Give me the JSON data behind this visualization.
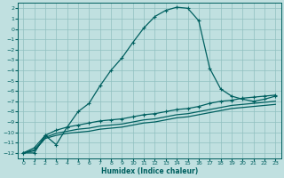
{
  "xlabel": "Humidex (Indice chaleur)",
  "ylabel": "",
  "bg_color": "#c0e0e0",
  "grid_color": "#90c0c0",
  "line_color": "#006060",
  "xlim": [
    -0.5,
    23.5
  ],
  "ylim": [
    -12.5,
    2.5
  ],
  "yticks": [
    2,
    1,
    0,
    -1,
    -2,
    -3,
    -4,
    -5,
    -6,
    -7,
    -8,
    -9,
    -10,
    -11,
    -12
  ],
  "xticks": [
    0,
    1,
    2,
    3,
    4,
    5,
    6,
    7,
    8,
    9,
    10,
    11,
    12,
    13,
    14,
    15,
    16,
    17,
    18,
    19,
    20,
    21,
    22,
    23
  ],
  "curve1_x": [
    0,
    1,
    2,
    3,
    4,
    5,
    6,
    7,
    8,
    9,
    10,
    11,
    12,
    13,
    14,
    15,
    16,
    17,
    18,
    19,
    20,
    21,
    22,
    23
  ],
  "curve1_y": [
    -12,
    -12,
    -10.3,
    -11.2,
    -9.5,
    -8.0,
    -7.2,
    -5.5,
    -4.0,
    -2.8,
    -1.3,
    0.1,
    1.2,
    1.8,
    2.1,
    2.0,
    0.8,
    -3.8,
    -5.8,
    -6.5,
    -6.8,
    -7.0,
    -6.8,
    -6.5
  ],
  "curve2_x": [
    0,
    1,
    2,
    3,
    4,
    5,
    6,
    7,
    8,
    9,
    10,
    11,
    12,
    13,
    14,
    15,
    16,
    17,
    18,
    19,
    20,
    21,
    22,
    23
  ],
  "curve2_y": [
    -12,
    -11.5,
    -10.3,
    -9.8,
    -9.5,
    -9.3,
    -9.1,
    -8.9,
    -8.8,
    -8.7,
    -8.5,
    -8.3,
    -8.2,
    -8.0,
    -7.8,
    -7.7,
    -7.5,
    -7.2,
    -7.0,
    -6.9,
    -6.7,
    -6.6,
    -6.5,
    -6.4
  ],
  "curve3_x": [
    0,
    1,
    2,
    3,
    4,
    5,
    6,
    7,
    8,
    9,
    10,
    11,
    12,
    13,
    14,
    15,
    16,
    17,
    18,
    19,
    20,
    21,
    22,
    23
  ],
  "curve3_y": [
    -12,
    -11.7,
    -10.5,
    -10.1,
    -9.9,
    -9.7,
    -9.6,
    -9.4,
    -9.3,
    -9.2,
    -9.0,
    -8.8,
    -8.7,
    -8.5,
    -8.3,
    -8.2,
    -8.0,
    -7.8,
    -7.6,
    -7.4,
    -7.3,
    -7.2,
    -7.1,
    -7.0
  ],
  "curve4_x": [
    0,
    1,
    2,
    3,
    4,
    5,
    6,
    7,
    8,
    9,
    10,
    11,
    12,
    13,
    14,
    15,
    16,
    17,
    18,
    19,
    20,
    21,
    22,
    23
  ],
  "curve4_y": [
    -12,
    -11.8,
    -10.6,
    -10.3,
    -10.1,
    -10.0,
    -9.9,
    -9.7,
    -9.6,
    -9.5,
    -9.3,
    -9.1,
    -9.0,
    -8.8,
    -8.6,
    -8.5,
    -8.3,
    -8.1,
    -7.9,
    -7.7,
    -7.6,
    -7.5,
    -7.4,
    -7.3
  ]
}
